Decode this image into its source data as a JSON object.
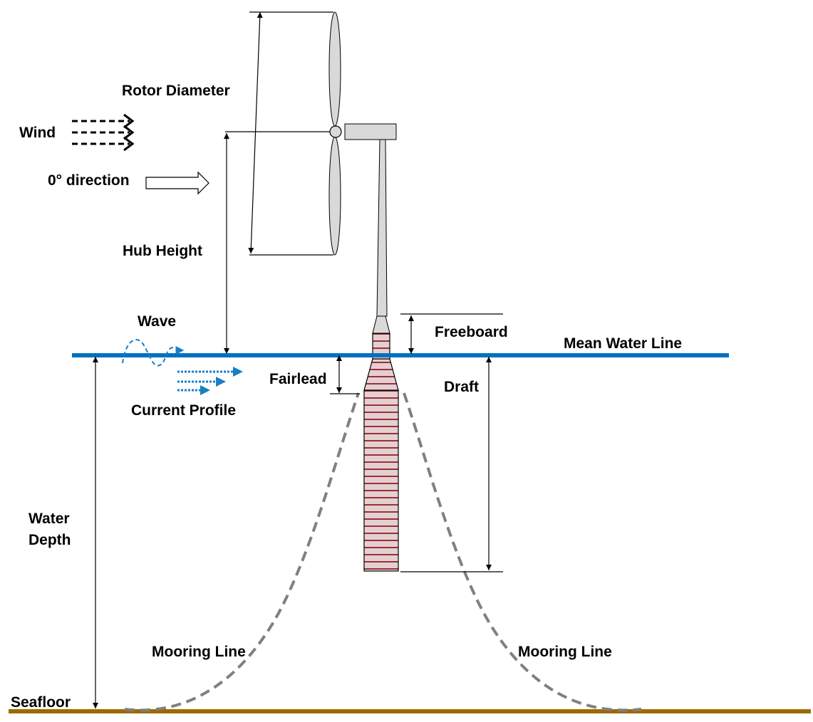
{
  "labels": {
    "rotor_diameter": "Rotor Diameter",
    "wind": "Wind",
    "direction": "0° direction",
    "hub_height": "Hub Height",
    "wave": "Wave",
    "freeboard": "Freeboard",
    "mean_water_line": "Mean Water Line",
    "fairlead": "Fairlead",
    "draft": "Draft",
    "current_profile": "Current Profile",
    "water_depth_line1": "Water",
    "water_depth_line2": "Depth",
    "mooring_line_left": "Mooring Line",
    "mooring_line_right": "Mooring Line",
    "seafloor": "Seafloor"
  },
  "colors": {
    "water_line": "#0070c0",
    "seafloor": "#9c6b00",
    "mooring_line": "#808080",
    "spar_fill": "#e6cfd3",
    "spar_stripes": "#7a0000",
    "turbine_fill": "#d9d9d9",
    "flow_arrows": "#1a7ec4"
  }
}
